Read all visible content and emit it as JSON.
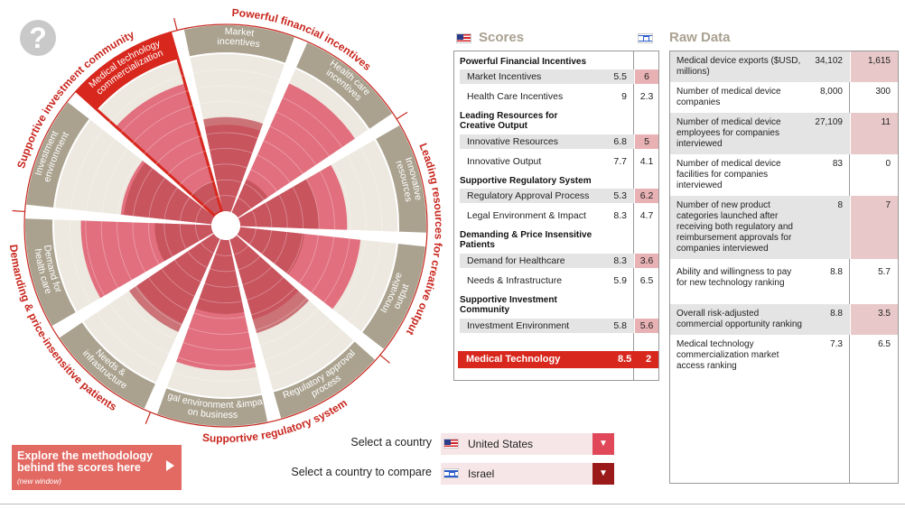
{
  "help": {
    "label": "?"
  },
  "wheel": {
    "outer_labels": [
      "Powerful financial incentives",
      "Leading resources for creative output",
      "Supportive regulatory system",
      "Demanding & price-insensitive patients",
      "Supportive investment community"
    ],
    "segment_labels": [
      "Market incentives",
      "Health care incentives",
      "Innovative resources",
      "Innovative output",
      "Regulatory approval process",
      "Legal environment &impact on business",
      "Needs & infrastructure",
      "Demand for health care",
      "Investment environment",
      "Medical technology commercialization"
    ],
    "primary_scores": [
      5.5,
      9,
      6.8,
      7.7,
      5.3,
      8.3,
      5.9,
      8.3,
      5.8,
      8.5
    ],
    "compare_scores": [
      6,
      2.3,
      5,
      4.1,
      6.2,
      4.7,
      6.5,
      3.6,
      5.6,
      2
    ],
    "selected_segment": "Medical technology commercialization",
    "colors": {
      "segment_bg": "#ede9e0",
      "label_band": "#aaa28f",
      "primary": "#e26f7e",
      "compare": "#bf4b54",
      "selected": "#d8281e",
      "outer_text": "#c8261e",
      "ring": "#c8261e"
    }
  },
  "scores": {
    "header": "Scores",
    "sections": [
      {
        "title": "Powerful Financial Incentives",
        "rows": [
          {
            "label": "Market Incentives",
            "value": "5.5",
            "compare": "6",
            "pink": true
          },
          {
            "label": "Health Care Incentives",
            "value": "9",
            "compare": "2.3",
            "pink": false
          }
        ]
      },
      {
        "title": "Leading Resources for Creative Output",
        "rows": [
          {
            "label": "Innovative Resources",
            "value": "6.8",
            "compare": "5",
            "pink": true
          },
          {
            "label": "Innovative Output",
            "value": "7.7",
            "compare": "4.1",
            "pink": false
          }
        ]
      },
      {
        "title": "Supportive Regulatory System",
        "rows": [
          {
            "label": "Regulatory Approval Process",
            "value": "5.3",
            "compare": "6.2",
            "pink": true
          },
          {
            "label": "Legal Environment & Impact",
            "value": "8.3",
            "compare": "4.7",
            "pink": false
          }
        ]
      },
      {
        "title": "Demanding & Price Insensitive Patients",
        "rows": [
          {
            "label": "Demand for Healthcare",
            "value": "8.3",
            "compare": "3.6",
            "pink": true
          },
          {
            "label": "Needs & Infrastructure",
            "value": "5.9",
            "compare": "6.5",
            "pink": false
          }
        ]
      },
      {
        "title": "Supportive Investment Community",
        "rows": [
          {
            "label": "Investment Environment",
            "value": "5.8",
            "compare": "5.6",
            "pink": true
          }
        ]
      }
    ],
    "total": {
      "label": "Medical Technology",
      "value": "8.5",
      "compare": "2"
    }
  },
  "raw": {
    "header": "Raw Data",
    "rows": [
      {
        "label": "Medical device exports ($USD, millions)",
        "value": "34,102",
        "compare": "1,615",
        "shade": true,
        "pink": true
      },
      {
        "label": "Number of medical device companies",
        "value": "8,000",
        "compare": "300",
        "shade": false,
        "pink": false
      },
      {
        "label": "Number of medical device employees for companies interviewed",
        "value": "27,109",
        "compare": "11",
        "shade": true,
        "pink": true
      },
      {
        "label": "Number of medical device facilities for companies interviewed",
        "value": "83",
        "compare": "0",
        "shade": false,
        "pink": false
      },
      {
        "label": "Number of new product categories launched after receiving both regulatory and reimbursement approvals for companies interviewed",
        "value": "8",
        "compare": "7",
        "shade": true,
        "pink": true
      },
      {
        "label": "Ability and willingness to pay for new technology ranking",
        "value": "8.8",
        "compare": "5.7",
        "shade": false,
        "pink": false
      },
      {
        "label": "Overall risk-adjusted commercial opportunity ranking",
        "value": "8.8",
        "compare": "3.5",
        "shade": true,
        "pink": true
      },
      {
        "label": "Medical technology commercialization market access ranking",
        "value": "7.3",
        "compare": "6.5",
        "shade": false,
        "pink": false
      }
    ]
  },
  "selectors": {
    "country_label": "Select a country",
    "country_value": "United States",
    "compare_label": "Select a country to compare",
    "compare_value": "Israel",
    "arrow_colors": [
      "#e0485a",
      "#9a1a1a"
    ]
  },
  "explore": {
    "title": "Explore the methodology behind the scores here",
    "note": "(new window)"
  }
}
